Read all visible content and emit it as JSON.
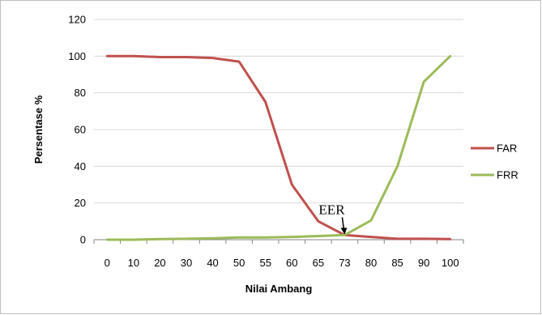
{
  "chart_data": {
    "type": "line",
    "xlabel": "Nilai Ambang",
    "ylabel": "Persentase %",
    "categories": [
      "0",
      "10",
      "20",
      "30",
      "40",
      "50",
      "55",
      "60",
      "65",
      "73",
      "80",
      "85",
      "90",
      "100"
    ],
    "ylim": [
      0,
      120
    ],
    "yticks": [
      0,
      20,
      40,
      60,
      80,
      100,
      120
    ],
    "grid": true,
    "legend_position": "right",
    "series": [
      {
        "name": "FAR",
        "color": "#c0504d",
        "values": [
          100,
          100,
          99.5,
          99.5,
          99,
          97,
          75,
          30,
          10,
          2.5,
          1.5,
          0.5,
          0.5,
          0.3
        ]
      },
      {
        "name": "FRR",
        "color": "#9bbb59",
        "values": [
          0,
          0,
          0.3,
          0.5,
          0.8,
          1.2,
          1.2,
          1.5,
          2,
          2.5,
          10.5,
          40,
          86,
          100
        ]
      }
    ],
    "annotations": [
      {
        "text": "EER",
        "category": "73",
        "value": 2.5
      }
    ]
  }
}
